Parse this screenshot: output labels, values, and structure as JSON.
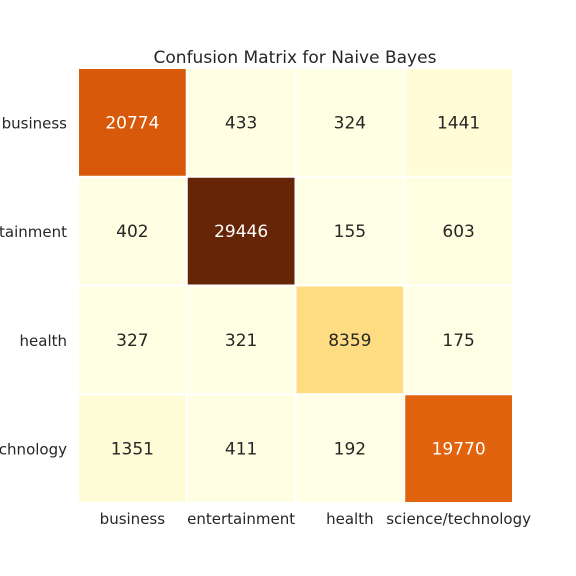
{
  "chart_data": {
    "type": "heatmap",
    "title": "Confusion Matrix for Naive Bayes",
    "xlabel": "",
    "ylabel": "",
    "row_labels": [
      "business",
      "entertainment",
      "health",
      "science/technology"
    ],
    "col_labels": [
      "business",
      "entertainment",
      "health",
      "science/technology"
    ],
    "values": [
      [
        20774,
        433,
        324,
        1441
      ],
      [
        402,
        29446,
        155,
        603
      ],
      [
        327,
        321,
        8359,
        175
      ],
      [
        1351,
        411,
        192,
        19770
      ]
    ],
    "colormap": "YlOrBr",
    "colorbar": false,
    "grid_lines_color": "#ffffff",
    "annotations": true
  }
}
